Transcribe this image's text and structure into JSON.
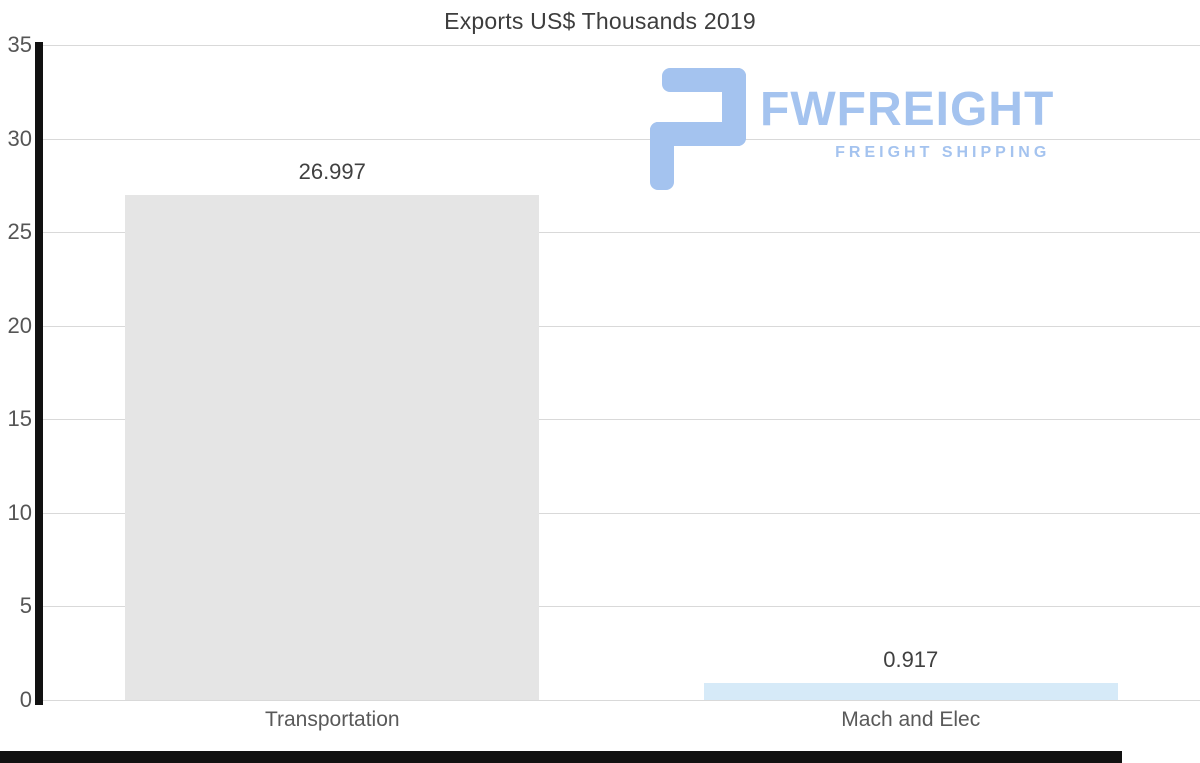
{
  "chart_data": {
    "type": "bar",
    "title": "Exports US$ Thousands 2019",
    "categories": [
      "Transportation",
      "Mach and Elec"
    ],
    "values": [
      26.997,
      0.917
    ],
    "value_labels": [
      "26.997",
      "0.917"
    ],
    "bar_colors": [
      "#e5e5e5",
      "#d6eaf8"
    ],
    "xlabel": "",
    "ylabel": "",
    "ylim": [
      0,
      35
    ],
    "yticks": [
      0,
      5,
      10,
      15,
      20,
      25,
      30,
      35
    ],
    "grid": true,
    "legend": "none",
    "axis_color": "#111111",
    "grid_color": "#d9d9d9"
  },
  "watermark": {
    "brand": "FWFREIGHT",
    "tagline": "FREIGHT SHIPPING",
    "color": "#a4c3ef",
    "icon": "fwfreight-logo-icon"
  }
}
